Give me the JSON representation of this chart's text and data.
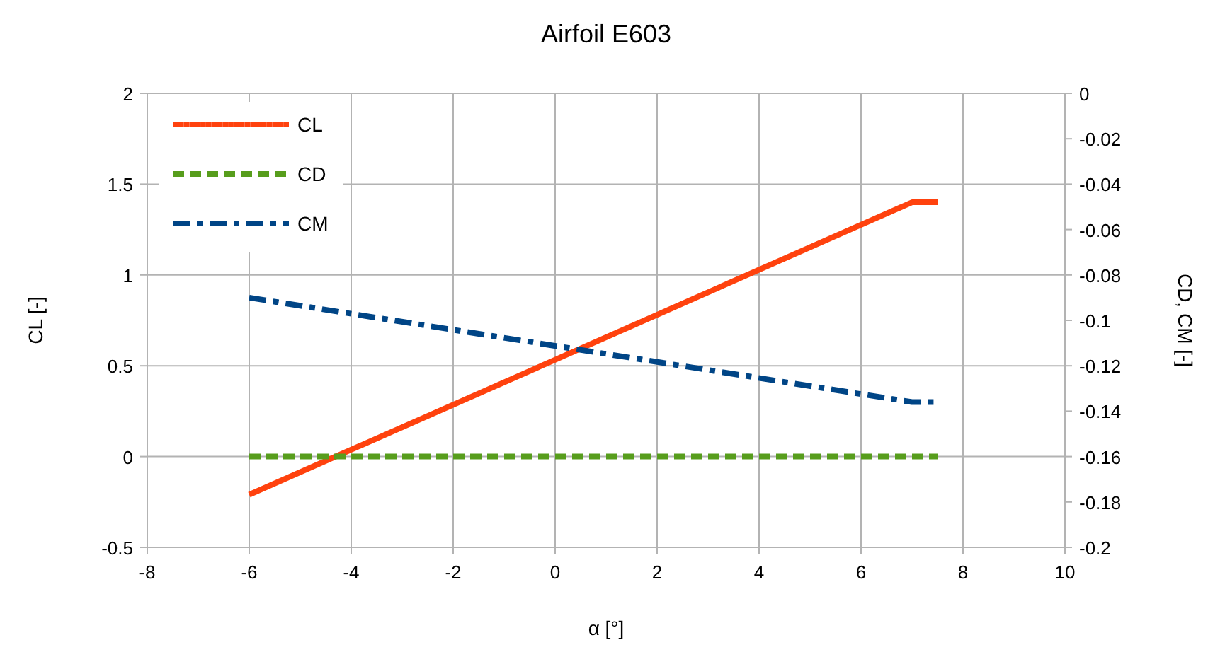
{
  "chart_data": {
    "type": "line",
    "title": "Airfoil E603",
    "xlabel": "α [°]",
    "ylabel": "CL [-]",
    "y2label": "CD, CM [-]",
    "xlim": [
      -8,
      10
    ],
    "xticks": [
      -8,
      -6,
      -4,
      -2,
      0,
      2,
      4,
      6,
      8,
      10
    ],
    "ylim": [
      -0.5,
      2
    ],
    "yticks": [
      -0.5,
      0,
      0.5,
      1,
      1.5,
      2
    ],
    "y2lim": [
      -0.2,
      0
    ],
    "y2ticks": [
      -0.2,
      -0.18,
      -0.16,
      -0.14,
      -0.12,
      -0.1,
      -0.08,
      -0.06,
      -0.04,
      -0.02,
      0
    ],
    "grid": true,
    "legend": "top left",
    "marker": "none",
    "series": [
      {
        "name": "CL",
        "color": "#ff420e",
        "x": [
          -6,
          7,
          7.5
        ],
        "values": [
          -0.21,
          1.4,
          1.4
        ],
        "line_style": "solid"
      },
      {
        "name": "CD",
        "color": "#579d1c",
        "x": [
          -6,
          7.5
        ],
        "values": [
          0,
          0
        ],
        "line_style": "dashed"
      },
      {
        "name": "CM",
        "color": "#004586",
        "x": [
          -6,
          7,
          7.5
        ],
        "values": [
          -0.09,
          -0.136,
          -0.136
        ],
        "axis": "y2",
        "line_style": "dashdot"
      }
    ]
  }
}
